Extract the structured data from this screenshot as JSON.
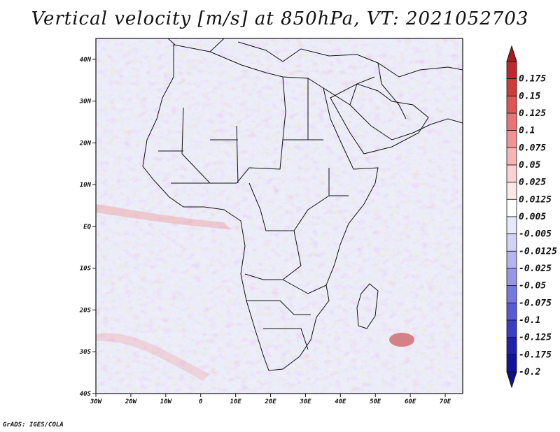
{
  "title": "Vertical velocity [m/s] at 850hPa, VT: 2021052703",
  "credit": "GrADS: IGES/COLA",
  "map": {
    "lon_range": [
      -30,
      75
    ],
    "lat_range": [
      -40,
      45
    ],
    "lat_ticks": [
      {
        "value": 40,
        "label": "40N"
      },
      {
        "value": 30,
        "label": "30N"
      },
      {
        "value": 20,
        "label": "20N"
      },
      {
        "value": 10,
        "label": "10N"
      },
      {
        "value": 0,
        "label": "EQ"
      },
      {
        "value": -10,
        "label": "10S"
      },
      {
        "value": -20,
        "label": "20S"
      },
      {
        "value": -30,
        "label": "30S"
      },
      {
        "value": -40,
        "label": "40S"
      }
    ],
    "lon_ticks": [
      {
        "value": -30,
        "label": "30W"
      },
      {
        "value": -20,
        "label": "20W"
      },
      {
        "value": -10,
        "label": "10W"
      },
      {
        "value": 0,
        "label": "0"
      },
      {
        "value": 10,
        "label": "10E"
      },
      {
        "value": 20,
        "label": "20E"
      },
      {
        "value": 30,
        "label": "30E"
      },
      {
        "value": 40,
        "label": "40E"
      },
      {
        "value": 50,
        "label": "50E"
      },
      {
        "value": 60,
        "label": "60E"
      },
      {
        "value": 70,
        "label": "70E"
      }
    ]
  },
  "colorbar": {
    "labels": [
      "0.175",
      "0.15",
      "0.125",
      "0.1",
      "0.075",
      "0.05",
      "0.025",
      "0.0125",
      "0.005",
      "-0.005",
      "-0.0125",
      "-0.025",
      "-0.05",
      "-0.075",
      "-0.1",
      "-0.125",
      "-0.175",
      "-0.2"
    ],
    "colors": [
      "#c0262e",
      "#d23a3a",
      "#e05454",
      "#ea7474",
      "#f29494",
      "#f7b4b4",
      "#fbd2d2",
      "#fde8e8",
      "#ffffff",
      "#e8e8fb",
      "#d2d2f8",
      "#b4b4f2",
      "#9696ea",
      "#7878e2",
      "#5a5ad8",
      "#3c3cc8",
      "#2020b0",
      "#14149a"
    ],
    "top_arrow_color": "#a81a22",
    "bottom_arrow_color": "#10108a"
  }
}
